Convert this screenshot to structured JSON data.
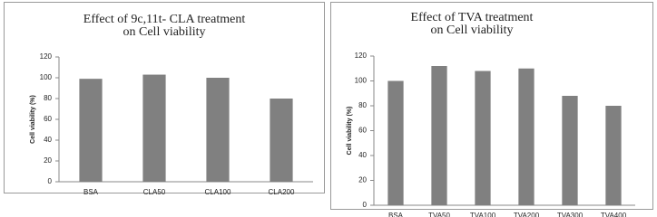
{
  "chart_data": [
    {
      "type": "bar",
      "title": [
        "Effect of 9c,11t- CLA treatment",
        "on Cell viability"
      ],
      "y_label": "Cell viability (%)",
      "categories": [
        "BSA",
        "CLA50",
        "CLA100",
        "CLA200"
      ],
      "values": [
        99,
        103,
        100,
        80
      ],
      "color": "#808080",
      "ylim": [
        0,
        120
      ],
      "yticks": [
        0,
        20,
        40,
        60,
        80,
        100,
        120
      ],
      "grid": false
    },
    {
      "type": "bar",
      "title": [
        "Effect of TVA treatment",
        "on Cell viability"
      ],
      "y_label": "Cell viability (%)",
      "categories": [
        "BSA",
        "TVA50",
        "TVA100",
        "TVA200",
        "TVA300",
        "TVA400"
      ],
      "values": [
        100,
        112,
        108,
        110,
        88,
        80
      ],
      "color": "#808080",
      "ylim": [
        0,
        120
      ],
      "yticks": [
        0,
        20,
        40,
        60,
        80,
        100,
        120
      ],
      "grid": false
    }
  ]
}
